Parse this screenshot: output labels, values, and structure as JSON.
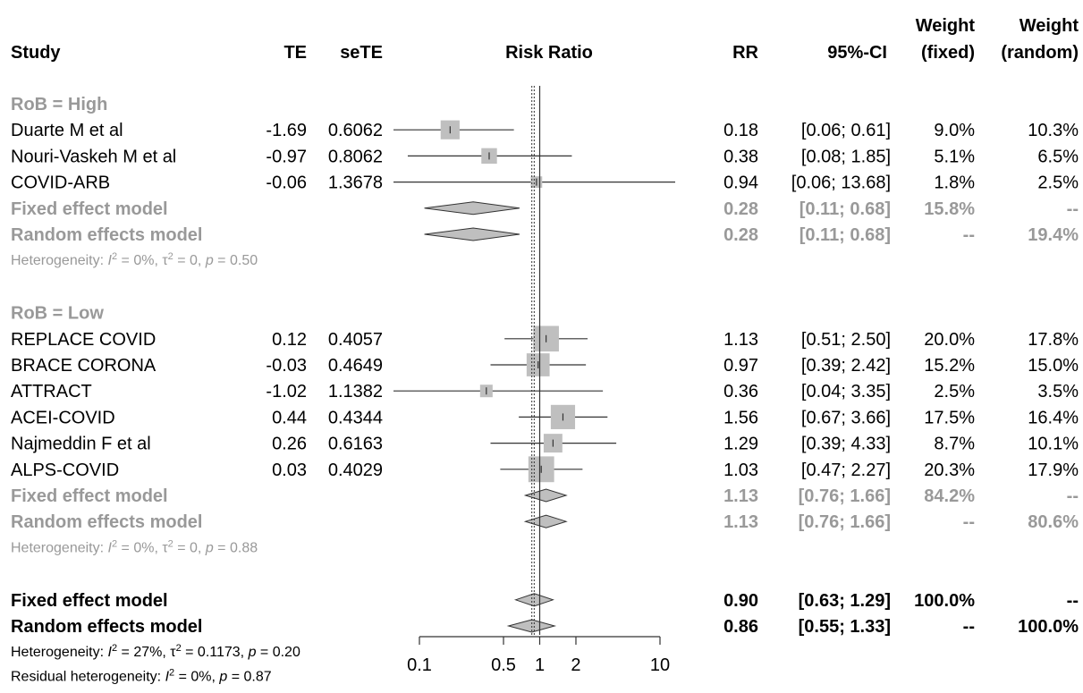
{
  "header": {
    "study": "Study",
    "te": "TE",
    "sete": "seTE",
    "plot_title": "Risk Ratio",
    "rr": "RR",
    "ci": "95%-CI",
    "weight_fixed_1": "Weight",
    "weight_fixed_2": "(fixed)",
    "weight_random_1": "Weight",
    "weight_random_2": "(random)"
  },
  "chart_data": {
    "type": "forest",
    "xscale": "log",
    "xlim": [
      0.1,
      10
    ],
    "x_ticks": [
      0.1,
      0.5,
      1,
      2,
      10
    ],
    "x_tick_labels": [
      "0.1",
      "0.5",
      "1",
      "2",
      "10"
    ],
    "null_line": 1,
    "fixed_dotted_line": 0.9,
    "random_dotted_line": 0.86,
    "groups": [
      {
        "label": "RoB = High",
        "studies": [
          {
            "name": "Duarte M et al",
            "te": "-1.69",
            "sete": "0.6062",
            "rr": 0.18,
            "lower": 0.06,
            "upper": 0.61,
            "rr_text": "0.18",
            "ci_text": "[0.06;  0.61]",
            "w_fixed": "9.0%",
            "w_random": "10.3%",
            "w": 9.0
          },
          {
            "name": "Nouri-Vaskeh M et al",
            "te": "-0.97",
            "sete": "0.8062",
            "rr": 0.38,
            "lower": 0.08,
            "upper": 1.85,
            "rr_text": "0.38",
            "ci_text": "[0.08;  1.85]",
            "w_fixed": "5.1%",
            "w_random": "6.5%",
            "w": 5.1
          },
          {
            "name": "COVID-ARB",
            "te": "-0.06",
            "sete": "1.3678",
            "rr": 0.94,
            "lower": 0.06,
            "upper": 13.68,
            "rr_text": "0.94",
            "ci_text": "[0.06; 13.68]",
            "w_fixed": "1.8%",
            "w_random": "2.5%",
            "w": 1.8
          }
        ],
        "fixed": {
          "label": "Fixed effect model",
          "rr": 0.28,
          "lower": 0.11,
          "upper": 0.68,
          "rr_text": "0.28",
          "ci_text": "[0.11;  0.68]",
          "w_fixed": "15.8%",
          "w_random": "--"
        },
        "random": {
          "label": "Random effects model",
          "rr": 0.28,
          "lower": 0.11,
          "upper": 0.68,
          "rr_text": "0.28",
          "ci_text": "[0.11;  0.68]",
          "w_fixed": "--",
          "w_random": "19.4%"
        },
        "heterogeneity": {
          "i2": "0%",
          "tau2": "0",
          "p": "0.50"
        }
      },
      {
        "label": "RoB = Low",
        "studies": [
          {
            "name": "REPLACE COVID",
            "te": "0.12",
            "sete": "0.4057",
            "rr": 1.13,
            "lower": 0.51,
            "upper": 2.5,
            "rr_text": "1.13",
            "ci_text": "[0.51;  2.50]",
            "w_fixed": "20.0%",
            "w_random": "17.8%",
            "w": 20.0
          },
          {
            "name": "BRACE CORONA",
            "te": "-0.03",
            "sete": "0.4649",
            "rr": 0.97,
            "lower": 0.39,
            "upper": 2.42,
            "rr_text": "0.97",
            "ci_text": "[0.39;  2.42]",
            "w_fixed": "15.2%",
            "w_random": "15.0%",
            "w": 15.2
          },
          {
            "name": "ATTRACT",
            "te": "-1.02",
            "sete": "1.1382",
            "rr": 0.36,
            "lower": 0.04,
            "upper": 3.35,
            "rr_text": "0.36",
            "ci_text": "[0.04;  3.35]",
            "w_fixed": "2.5%",
            "w_random": "3.5%",
            "w": 2.5
          },
          {
            "name": "ACEI-COVID",
            "te": "0.44",
            "sete": "0.4344",
            "rr": 1.56,
            "lower": 0.67,
            "upper": 3.66,
            "rr_text": "1.56",
            "ci_text": "[0.67;  3.66]",
            "w_fixed": "17.5%",
            "w_random": "16.4%",
            "w": 17.5
          },
          {
            "name": "Najmeddin F et al",
            "te": "0.26",
            "sete": "0.6163",
            "rr": 1.29,
            "lower": 0.39,
            "upper": 4.33,
            "rr_text": "1.29",
            "ci_text": "[0.39;  4.33]",
            "w_fixed": "8.7%",
            "w_random": "10.1%",
            "w": 8.7
          },
          {
            "name": "ALPS-COVID",
            "te": "0.03",
            "sete": "0.4029",
            "rr": 1.03,
            "lower": 0.47,
            "upper": 2.27,
            "rr_text": "1.03",
            "ci_text": "[0.47;  2.27]",
            "w_fixed": "20.3%",
            "w_random": "17.9%",
            "w": 20.3
          }
        ],
        "fixed": {
          "label": "Fixed effect model",
          "rr": 1.13,
          "lower": 0.76,
          "upper": 1.66,
          "rr_text": "1.13",
          "ci_text": "[0.76;  1.66]",
          "w_fixed": "84.2%",
          "w_random": "--"
        },
        "random": {
          "label": "Random effects model",
          "rr": 1.13,
          "lower": 0.76,
          "upper": 1.66,
          "rr_text": "1.13",
          "ci_text": "[0.76;  1.66]",
          "w_fixed": "--",
          "w_random": "80.6%"
        },
        "heterogeneity": {
          "i2": "0%",
          "tau2": "0",
          "p": "0.88"
        }
      }
    ],
    "overall": {
      "fixed": {
        "label": "Fixed effect model",
        "rr": 0.9,
        "lower": 0.63,
        "upper": 1.29,
        "rr_text": "0.90",
        "ci_text": "[0.63;  1.29]",
        "w_fixed": "100.0%",
        "w_random": "--"
      },
      "random": {
        "label": "Random effects model",
        "rr": 0.86,
        "lower": 0.55,
        "upper": 1.33,
        "rr_text": "0.86",
        "ci_text": "[0.55;  1.33]",
        "w_fixed": "--",
        "w_random": "100.0%"
      },
      "heterogeneity": {
        "i2": "27%",
        "tau2": "0.1173",
        "p": "0.20"
      },
      "residual": {
        "i2": "0%",
        "p": "0.87"
      }
    }
  },
  "colors": {
    "text": "#000000",
    "subgroup_text": "#999999",
    "square": "#bfbfbf",
    "diamond": "#bfbfbf",
    "line": "#333333"
  }
}
